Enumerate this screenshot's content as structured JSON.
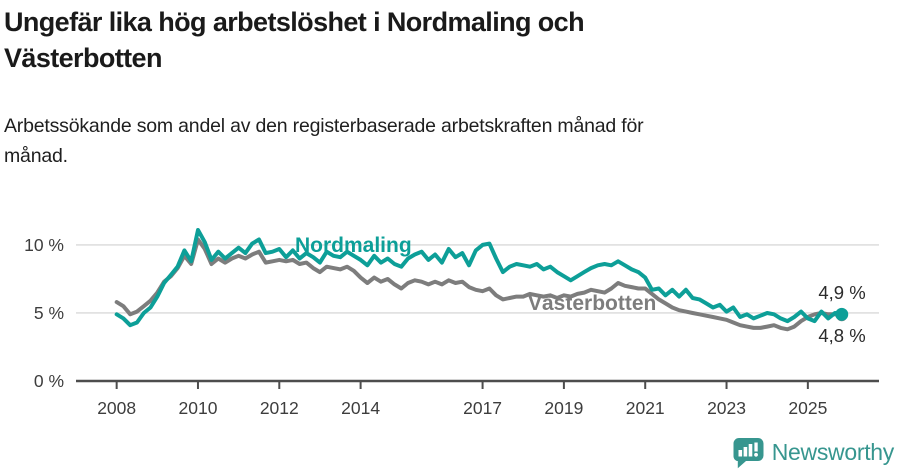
{
  "header": {
    "title": "Ungefär lika hög arbetslöshet i Nordmaling och\nVästerbotten",
    "subtitle": "Arbetssökande som andel av den registerbaserade arbetskraften månad för\nmånad."
  },
  "footer": {
    "brand": "Newsworthy",
    "brand_color": "#37968f",
    "logo_icon": "bar-chart-speech-bubble"
  },
  "chart_data": {
    "type": "line",
    "title": "Ungefär lika hög arbetslöshet i Nordmaling och Västerbotten",
    "subtitle": "Arbetssökande som andel av den registerbaserade arbetskraften månad för månad.",
    "unit": "%",
    "x_start": 2008.0,
    "x_step_years": 0.1666667,
    "x_ticks": [
      "2008",
      "2010",
      "2012",
      "2014",
      "2017",
      "2019",
      "2021",
      "2023",
      "2025"
    ],
    "x_tick_values": [
      2008,
      2010,
      2012,
      2014,
      2017,
      2019,
      2021,
      2023,
      2025
    ],
    "y_ticks": [
      {
        "value": 0,
        "label": "0 %"
      },
      {
        "value": 5,
        "label": "5 %"
      },
      {
        "value": 10,
        "label": "10 %"
      }
    ],
    "ylim": [
      0,
      12.2
    ],
    "grid": "horizontal",
    "legend_position": "inline-labels",
    "colors": {
      "grid": "#d9d9d9",
      "axis": "#4d4d4d",
      "tick_text": "#3d3d3d",
      "end_label_text": "#2b2b2b"
    },
    "series": [
      {
        "name": "Nordmaling",
        "color": "#0d9f98",
        "end_label": "4,9 %",
        "end_value": 4.9,
        "end_dot": true,
        "values": [
          4.9,
          4.6,
          4.1,
          4.3,
          5.0,
          5.4,
          6.2,
          7.2,
          7.8,
          8.4,
          9.6,
          8.8,
          11.1,
          10.2,
          8.9,
          9.5,
          9.0,
          9.4,
          9.8,
          9.4,
          10.1,
          10.4,
          9.4,
          9.5,
          9.7,
          9.1,
          9.6,
          9.0,
          9.4,
          9.1,
          8.7,
          9.5,
          9.2,
          9.1,
          9.5,
          9.2,
          8.9,
          8.5,
          9.2,
          8.7,
          9.0,
          8.6,
          8.4,
          9.0,
          9.3,
          9.5,
          8.9,
          9.3,
          8.7,
          9.7,
          9.1,
          9.4,
          8.5,
          9.6,
          10.0,
          10.1,
          9.0,
          8.0,
          8.4,
          8.6,
          8.5,
          8.4,
          8.6,
          8.2,
          8.4,
          8.0,
          7.7,
          7.4,
          7.7,
          8.0,
          8.3,
          8.5,
          8.6,
          8.5,
          8.8,
          8.5,
          8.2,
          8.0,
          7.6,
          6.7,
          6.8,
          6.3,
          6.7,
          6.2,
          6.7,
          6.1,
          6.0,
          5.7,
          5.4,
          5.6,
          5.1,
          5.4,
          4.7,
          4.9,
          4.6,
          4.8,
          5.0,
          4.9,
          4.6,
          4.4,
          4.7,
          5.1,
          4.6,
          4.4,
          5.1,
          4.6,
          5.0,
          4.9
        ]
      },
      {
        "name": "Västerbotten",
        "color": "#7d7d7d",
        "end_label": "4,8 %",
        "end_value": 4.8,
        "end_dot": true,
        "values": [
          5.8,
          5.5,
          4.9,
          5.1,
          5.5,
          5.9,
          6.5,
          7.3,
          7.7,
          8.3,
          9.2,
          8.6,
          10.4,
          9.7,
          8.6,
          9.0,
          8.7,
          9.0,
          9.2,
          9.0,
          9.3,
          9.5,
          8.7,
          8.8,
          8.9,
          8.8,
          8.9,
          8.6,
          8.7,
          8.3,
          8.0,
          8.4,
          8.3,
          8.2,
          8.4,
          8.1,
          7.6,
          7.2,
          7.6,
          7.3,
          7.5,
          7.1,
          6.8,
          7.2,
          7.4,
          7.3,
          7.1,
          7.3,
          7.1,
          7.4,
          7.2,
          7.3,
          6.9,
          6.7,
          6.6,
          6.8,
          6.3,
          6.0,
          6.1,
          6.2,
          6.2,
          6.4,
          6.3,
          6.2,
          6.3,
          6.1,
          6.3,
          6.2,
          6.4,
          6.5,
          6.7,
          6.6,
          6.5,
          6.8,
          7.2,
          7.0,
          6.9,
          6.8,
          6.8,
          6.4,
          6.0,
          5.7,
          5.4,
          5.2,
          5.1,
          5.0,
          4.9,
          4.8,
          4.7,
          4.6,
          4.5,
          4.3,
          4.1,
          4.0,
          3.9,
          3.9,
          4.0,
          4.1,
          3.9,
          3.8,
          4.0,
          4.4,
          4.7,
          4.9,
          5.0,
          4.9,
          4.9,
          4.8
        ]
      }
    ]
  }
}
